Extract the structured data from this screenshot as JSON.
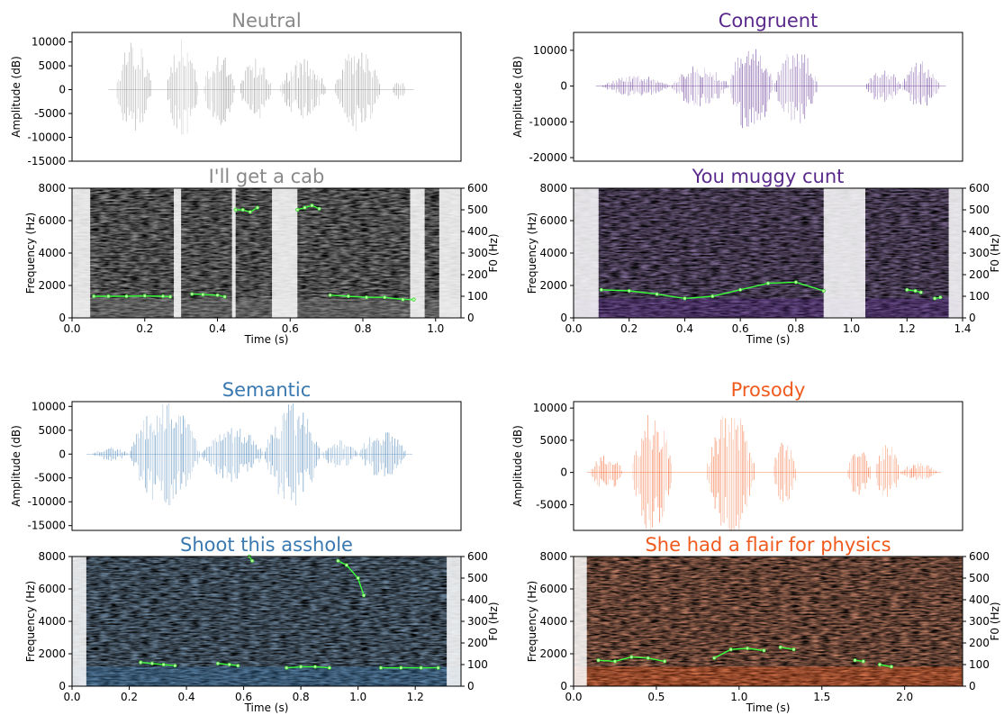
{
  "chart_data": [
    {
      "condition": "Neutral",
      "utterance": "I'll get a cab",
      "color": "#888888",
      "waveform": {
        "type": "area",
        "title": "Neutral",
        "ylabel": "Amplitude (dB)",
        "yticks": [
          10000,
          5000,
          0,
          -5000,
          -10000,
          -15000
        ],
        "ylim": [
          -15000,
          12000
        ],
        "segments": [
          {
            "start": 0.12,
            "end": 0.22,
            "amp": 10500
          },
          {
            "start": 0.26,
            "end": 0.35,
            "amp": 11000
          },
          {
            "start": 0.36,
            "end": 0.45,
            "amp": 8000
          },
          {
            "start": 0.46,
            "end": 0.55,
            "amp": 7000
          },
          {
            "start": 0.57,
            "end": 0.7,
            "amp": 6500
          },
          {
            "start": 0.72,
            "end": 0.85,
            "amp": 9000
          },
          {
            "start": 0.88,
            "end": 0.92,
            "amp": 2000
          }
        ]
      },
      "spectrogram": {
        "type": "heatmap",
        "title": "I'll get a cab",
        "xlabel": "Time (s)",
        "ylabel": "Frequency (Hz)",
        "ylabel_right": "F0 (Hz)",
        "xticks": [
          "0.0",
          "0.2",
          "0.4",
          "0.6",
          "0.8",
          "1.0"
        ],
        "yticks": [
          0,
          2000,
          4000,
          6000,
          8000
        ],
        "yticks_right": [
          0,
          100,
          200,
          300,
          400,
          500,
          600
        ],
        "xlim": [
          0,
          1.07
        ],
        "ylim": [
          0,
          8000
        ],
        "f0_ylim": [
          0,
          600
        ],
        "silences": [
          [
            0.0,
            0.05
          ],
          [
            0.28,
            0.3
          ],
          [
            0.44,
            0.45
          ],
          [
            0.55,
            0.62
          ],
          [
            0.93,
            0.97
          ],
          [
            1.01,
            1.07
          ]
        ],
        "f0": [
          {
            "x": [
              0.06,
              0.1,
              0.15,
              0.2,
              0.25,
              0.27
            ],
            "y": [
              100,
              100,
              100,
              102,
              100,
              98
            ]
          },
          {
            "x": [
              0.33,
              0.36,
              0.4,
              0.42
            ],
            "y": [
              110,
              108,
              105,
              98
            ]
          },
          {
            "x": [
              0.45,
              0.47,
              0.49,
              0.51
            ],
            "y": [
              500,
              500,
              490,
              510
            ]
          },
          {
            "x": [
              0.62,
              0.64,
              0.66,
              0.68
            ],
            "y": [
              500,
              510,
              520,
              505
            ]
          },
          {
            "x": [
              0.71,
              0.76,
              0.81,
              0.86,
              0.91,
              0.94
            ],
            "y": [
              105,
              100,
              95,
              95,
              85,
              85
            ]
          }
        ]
      }
    },
    {
      "condition": "Congruent",
      "utterance": "You muggy cunt",
      "color": "#5a2a8c",
      "waveform": {
        "type": "area",
        "title": "Congruent",
        "ylabel": "Amplitude (dB)",
        "yticks": [
          10000,
          0,
          -10000,
          -20000
        ],
        "ylim": [
          -21000,
          15000
        ],
        "segments": [
          {
            "start": 0.1,
            "end": 0.35,
            "amp": 3000
          },
          {
            "start": 0.35,
            "end": 0.56,
            "amp": 6000
          },
          {
            "start": 0.56,
            "end": 0.72,
            "amp": 14000
          },
          {
            "start": 0.72,
            "end": 0.88,
            "amp": 11000
          },
          {
            "start": 1.05,
            "end": 1.18,
            "amp": 5000
          },
          {
            "start": 1.18,
            "end": 1.32,
            "amp": 7000
          }
        ]
      },
      "spectrogram": {
        "type": "heatmap",
        "title": "You muggy cunt",
        "xlabel": "Time (s)",
        "ylabel": "Frequency (Hz)",
        "ylabel_right": "F0 (Hz)",
        "xticks": [
          "0.0",
          "0.2",
          "0.4",
          "0.6",
          "0.8",
          "1.0",
          "1.2",
          "1.4"
        ],
        "yticks": [
          0,
          2000,
          4000,
          6000,
          8000
        ],
        "yticks_right": [
          0,
          100,
          200,
          300,
          400,
          500,
          600
        ],
        "xlim": [
          0,
          1.4
        ],
        "ylim": [
          0,
          8000
        ],
        "f0_ylim": [
          0,
          600
        ],
        "silences": [
          [
            0.0,
            0.09
          ],
          [
            0.9,
            1.05
          ],
          [
            1.35,
            1.4
          ]
        ],
        "f0": [
          {
            "x": [
              0.1,
              0.2,
              0.3,
              0.4,
              0.5,
              0.6,
              0.7,
              0.8,
              0.9
            ],
            "y": [
              130,
              125,
              110,
              90,
              100,
              130,
              160,
              165,
              125
            ]
          },
          {
            "x": [
              1.2,
              1.23,
              1.25
            ],
            "y": [
              130,
              125,
              118
            ]
          },
          {
            "x": [
              1.3,
              1.32
            ],
            "y": [
              90,
              95
            ]
          }
        ]
      }
    },
    {
      "condition": "Semantic",
      "utterance": "Shoot this asshole",
      "color": "#3a78b0",
      "waveform": {
        "type": "area",
        "title": "Semantic",
        "ylabel": "Amplitude (dB)",
        "yticks": [
          10000,
          5000,
          0,
          -5000,
          -10000,
          -15000
        ],
        "ylim": [
          -16000,
          11000
        ],
        "segments": [
          {
            "start": 0.07,
            "end": 0.2,
            "amp": 1500
          },
          {
            "start": 0.2,
            "end": 0.45,
            "amp": 11000
          },
          {
            "start": 0.45,
            "end": 0.67,
            "amp": 6000
          },
          {
            "start": 0.67,
            "end": 0.87,
            "amp": 11000
          },
          {
            "start": 0.87,
            "end": 1.0,
            "amp": 3000
          },
          {
            "start": 1.0,
            "end": 1.17,
            "amp": 5000
          }
        ]
      },
      "spectrogram": {
        "type": "heatmap",
        "title": "Shoot this asshole",
        "xlabel": "Time (s)",
        "ylabel": "Frequency (Hz)",
        "ylabel_right": "F0 (Hz)",
        "xticks": [
          "0.0",
          "0.2",
          "0.4",
          "0.6",
          "0.8",
          "1.0",
          "1.2"
        ],
        "yticks": [
          0,
          2000,
          4000,
          6000,
          8000
        ],
        "yticks_right": [
          0,
          100,
          200,
          300,
          400,
          500,
          600
        ],
        "xlim": [
          0,
          1.36
        ],
        "ylim": [
          0,
          8000
        ],
        "f0_ylim": [
          0,
          600
        ],
        "silences": [
          [
            0.0,
            0.05
          ],
          [
            1.31,
            1.36
          ]
        ],
        "f0": [
          {
            "x": [
              0.24,
              0.28,
              0.32,
              0.36
            ],
            "y": [
              110,
              105,
              100,
              95
            ]
          },
          {
            "x": [
              0.51,
              0.55,
              0.58
            ],
            "y": [
              105,
              100,
              95
            ]
          },
          {
            "x": [
              0.62,
              0.63
            ],
            "y": [
              600,
              580
            ]
          },
          {
            "x": [
              0.75,
              0.8,
              0.85,
              0.9
            ],
            "y": [
              85,
              90,
              90,
              85
            ]
          },
          {
            "x": [
              0.93,
              0.96,
              1.0,
              1.02
            ],
            "y": [
              580,
              560,
              500,
              420
            ]
          },
          {
            "x": [
              1.08,
              1.15,
              1.22,
              1.28
            ],
            "y": [
              85,
              85,
              85,
              85
            ]
          }
        ]
      }
    },
    {
      "condition": "Prosody",
      "utterance": "She had a flair for physics",
      "color": "#f05a1e",
      "waveform": {
        "type": "area",
        "title": "Prosody",
        "ylabel": "Amplitude (dB)",
        "yticks": [
          10000,
          5000,
          0,
          -5000
        ],
        "ylim": [
          -9000,
          11000
        ],
        "segments": [
          {
            "start": 0.1,
            "end": 0.3,
            "amp": 3000
          },
          {
            "start": 0.35,
            "end": 0.6,
            "amp": 10000
          },
          {
            "start": 0.8,
            "end": 1.1,
            "amp": 10000
          },
          {
            "start": 1.2,
            "end": 1.35,
            "amp": 5000
          },
          {
            "start": 1.65,
            "end": 1.8,
            "amp": 4000
          },
          {
            "start": 1.82,
            "end": 1.97,
            "amp": 5000
          },
          {
            "start": 1.97,
            "end": 2.2,
            "amp": 1500
          }
        ]
      },
      "spectrogram": {
        "type": "heatmap",
        "title": "She had a flair for physics",
        "xlabel": "Time (s)",
        "ylabel": "Frequency (Hz)",
        "ylabel_right": "F0 (Hz)",
        "xticks": [
          "0.0",
          "0.5",
          "1.0",
          "1.5",
          "2.0"
        ],
        "yticks": [
          0,
          2000,
          4000,
          6000,
          8000
        ],
        "yticks_right": [
          0,
          100,
          200,
          300,
          400,
          500,
          600
        ],
        "xlim": [
          0,
          2.35
        ],
        "ylim": [
          0,
          8000
        ],
        "f0_ylim": [
          0,
          600
        ],
        "silences": [
          [
            0.0,
            0.08
          ]
        ],
        "f0": [
          {
            "x": [
              0.15,
              0.25,
              0.35,
              0.45,
              0.55
            ],
            "y": [
              120,
              115,
              135,
              130,
              115
            ]
          },
          {
            "x": [
              0.85,
              0.95,
              1.05,
              1.15
            ],
            "y": [
              130,
              170,
              175,
              165
            ]
          },
          {
            "x": [
              1.25,
              1.33
            ],
            "y": [
              180,
              170
            ]
          },
          {
            "x": [
              1.7,
              1.75
            ],
            "y": [
              120,
              115
            ]
          },
          {
            "x": [
              1.85,
              1.92
            ],
            "y": [
              100,
              90
            ]
          }
        ]
      }
    }
  ]
}
